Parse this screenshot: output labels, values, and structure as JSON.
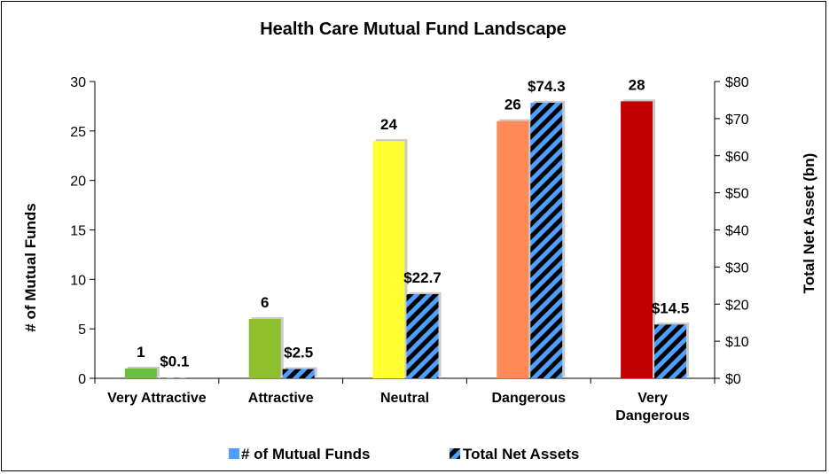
{
  "chart_data": {
    "type": "bar",
    "title": "Health Care Mutual Fund Landscape",
    "categories": [
      "Very Attractive",
      "Attractive",
      "Neutral",
      "Dangerous",
      "Very Dangerous"
    ],
    "category_lines": [
      [
        "Very Attractive"
      ],
      [
        "Attractive"
      ],
      [
        "Neutral"
      ],
      [
        "Dangerous"
      ],
      [
        "Very",
        "Dangerous"
      ]
    ],
    "series": [
      {
        "name": "# of Mutual Funds",
        "axis": "left",
        "values": [
          1,
          6,
          24,
          26,
          28
        ],
        "labels": [
          "1",
          "6",
          "24",
          "26",
          "28"
        ],
        "colors": [
          "#6cbf3c",
          "#8ec02e",
          "#ffff33",
          "#ff8a56",
          "#c00000"
        ]
      },
      {
        "name": "Total Net Assets",
        "axis": "right",
        "values": [
          0.1,
          2.5,
          22.7,
          74.3,
          14.5
        ],
        "labels": [
          "$0.1",
          "$2.5",
          "$22.7",
          "$74.3",
          "$14.5"
        ],
        "pattern": "diagonal-stripes",
        "colors": [
          "#4f9fff",
          "#000000"
        ]
      }
    ],
    "yleft": {
      "label": "# of Mutual Funds",
      "lim": [
        0,
        30
      ],
      "ticks": [
        0,
        5,
        10,
        15,
        20,
        25,
        30
      ],
      "tick_labels": [
        "0",
        "5",
        "10",
        "15",
        "20",
        "25",
        "30"
      ]
    },
    "yright": {
      "label": "Total Net Asset (bn)",
      "lim": [
        0,
        80
      ],
      "ticks": [
        0,
        10,
        20,
        30,
        40,
        50,
        60,
        70,
        80
      ],
      "tick_labels": [
        "$0",
        "$10",
        "$20",
        "$30",
        "$40",
        "$50",
        "$60",
        "$70",
        "$80"
      ]
    },
    "legend": {
      "position": "bottom",
      "entries": [
        "# of Mutual Funds",
        "Total Net Assets"
      ],
      "swatch_colors": [
        "#4f9fff",
        "#4f9fff"
      ]
    },
    "grid": false
  }
}
